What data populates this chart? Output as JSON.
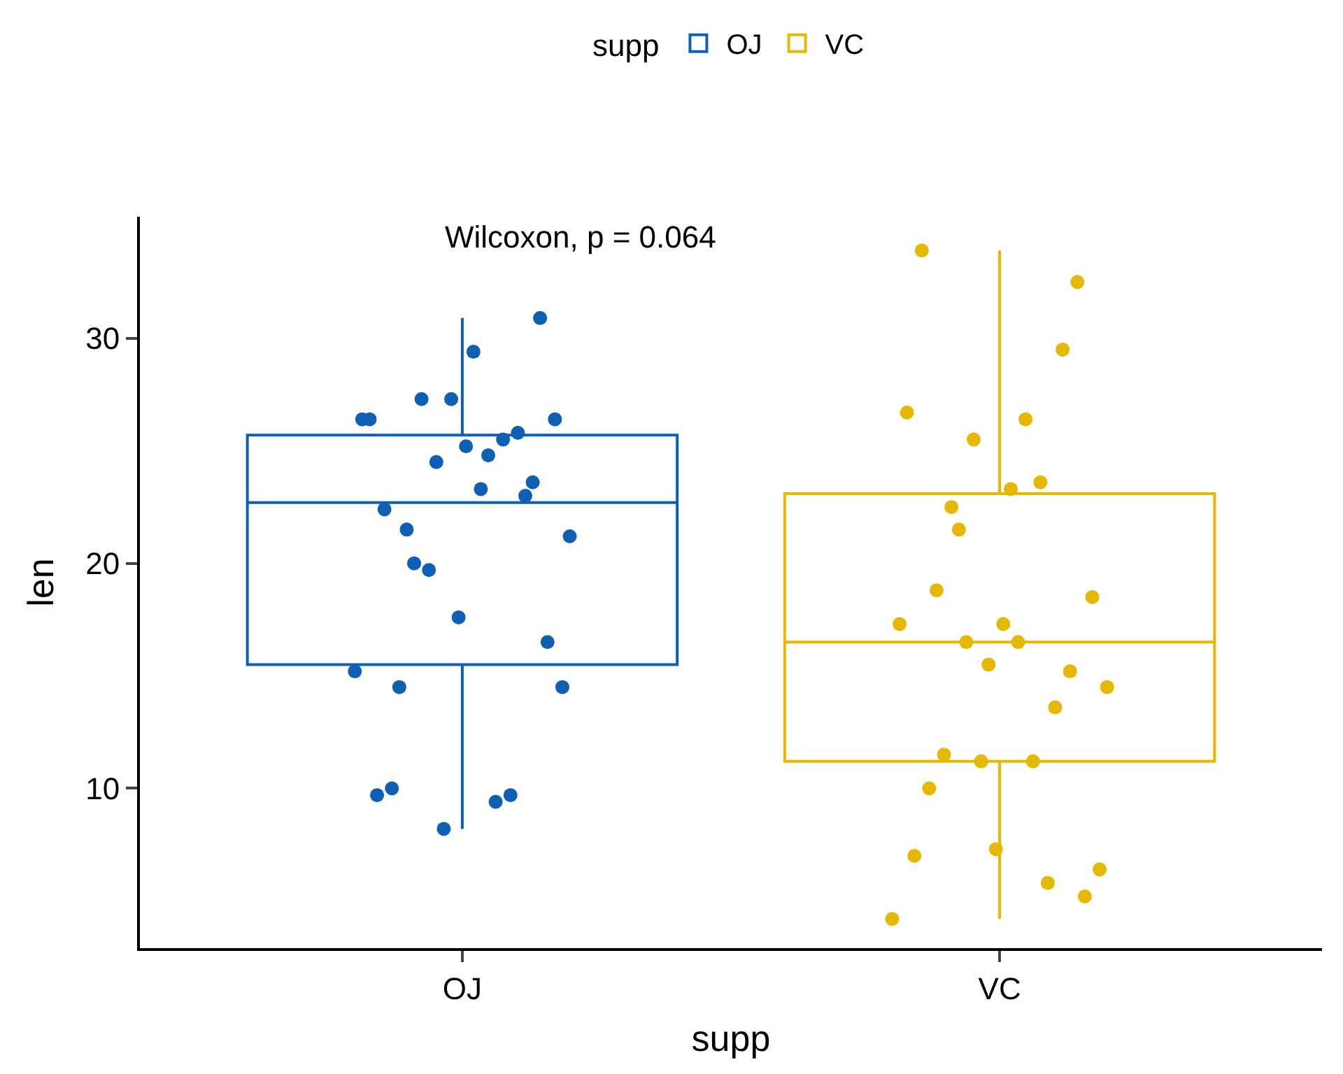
{
  "chart_data": {
    "type": "box",
    "categories": [
      "OJ",
      "VC"
    ],
    "xlabel": "supp",
    "ylabel": "len",
    "legend_title": "supp",
    "legend": "top",
    "annotations": [
      "Wilcoxon, p = 0.064"
    ],
    "ylim": [
      2.9,
      35.4
    ],
    "yticks": [
      10,
      20,
      30
    ],
    "grid": false,
    "marker": "circle",
    "series": [
      {
        "name": "OJ",
        "color": "#0f5fb4",
        "boxes": [
          {
            "low": 8.2,
            "q1": 15.5,
            "median": 22.7,
            "q3": 25.7,
            "high": 30.9
          },
          null
        ]
      },
      {
        "name": "VC",
        "color": "#e7b800",
        "boxes": [
          null,
          {
            "low": 4.2,
            "q1": 11.2,
            "median": 16.5,
            "q3": 23.1,
            "high": 33.9
          }
        ]
      },
      {
        "color": "#0f5fb4",
        "type": "scatter",
        "x": [
          "OJ",
          "OJ",
          "OJ",
          "OJ",
          "OJ",
          "OJ",
          "OJ",
          "OJ",
          "OJ",
          "OJ",
          "OJ",
          "OJ",
          "OJ",
          "OJ",
          "OJ",
          "OJ",
          "OJ",
          "OJ",
          "OJ",
          "OJ",
          "OJ",
          "OJ",
          "OJ",
          "OJ",
          "OJ",
          "OJ",
          "OJ",
          "OJ",
          "OJ",
          "OJ"
        ],
        "values": [
          15.2,
          21.5,
          17.6,
          9.7,
          14.5,
          10.0,
          8.2,
          9.4,
          16.5,
          9.7,
          19.7,
          23.3,
          23.6,
          26.4,
          20.0,
          25.2,
          25.8,
          21.2,
          14.5,
          27.3,
          25.5,
          26.4,
          22.4,
          24.5,
          24.8,
          30.9,
          26.4,
          27.3,
          29.4,
          23.0
        ]
      },
      {
        "color": "#e7b800",
        "type": "scatter",
        "x": [
          "VC",
          "VC",
          "VC",
          "VC",
          "VC",
          "VC",
          "VC",
          "VC",
          "VC",
          "VC",
          "VC",
          "VC",
          "VC",
          "VC",
          "VC",
          "VC",
          "VC",
          "VC",
          "VC",
          "VC",
          "VC",
          "VC",
          "VC",
          "VC",
          "VC",
          "VC",
          "VC",
          "VC",
          "VC",
          "VC"
        ],
        "values": [
          4.2,
          11.5,
          7.3,
          5.8,
          6.4,
          10.0,
          11.2,
          11.2,
          5.2,
          7.0,
          16.5,
          16.5,
          15.2,
          17.3,
          22.5,
          17.3,
          13.6,
          14.5,
          18.8,
          15.5,
          23.6,
          18.5,
          33.9,
          25.5,
          26.4,
          32.5,
          26.7,
          21.5,
          23.3,
          29.5
        ]
      }
    ]
  }
}
